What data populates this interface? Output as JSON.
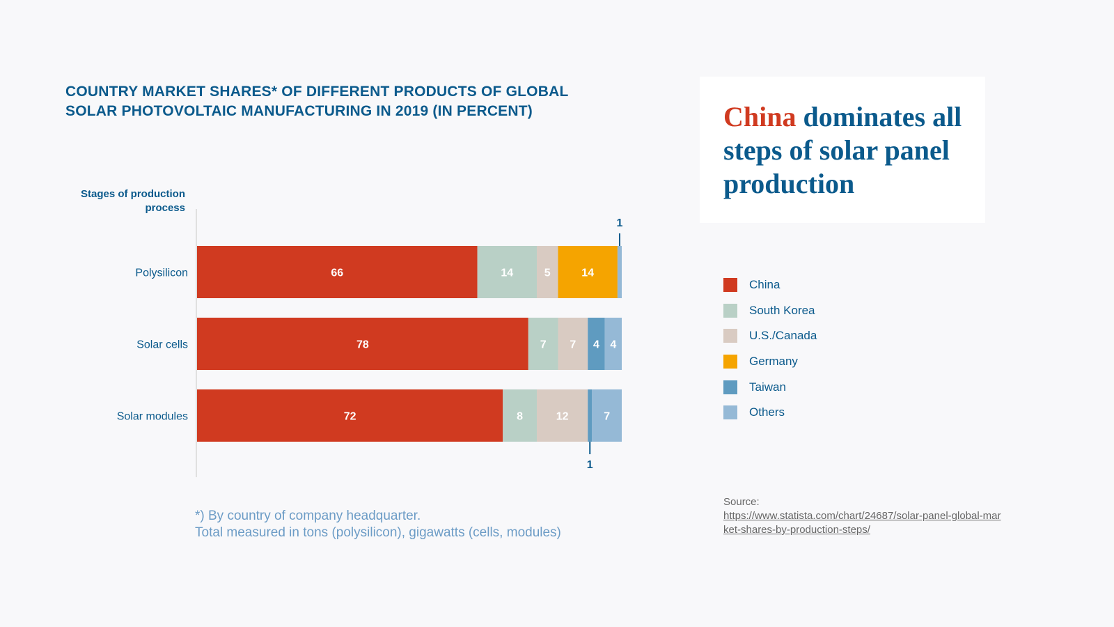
{
  "chart_data": {
    "type": "bar",
    "orientation": "horizontal",
    "stacked": true,
    "title": "COUNTRY MARKET SHARES* OF DIFFERENT PRODUCTS OF GLOBAL SOLAR PHOTOVOLTAIC MANUFACTURING IN 2019 (IN PERCENT)",
    "ylabel": "Stages of production process",
    "xlabel": "",
    "xlim": [
      0,
      100
    ],
    "grid": false,
    "legend_position": "right",
    "categories": [
      "Polysilicon",
      "Solar cells",
      "Solar modules"
    ],
    "series": [
      {
        "name": "China",
        "color": "#d03a20",
        "values": [
          66,
          78,
          72
        ]
      },
      {
        "name": "South Korea",
        "color": "#b9d0c6",
        "values": [
          14,
          7,
          8
        ]
      },
      {
        "name": "U.S./Canada",
        "color": "#d9cbc2",
        "values": [
          5,
          7,
          12
        ]
      },
      {
        "name": "Germany",
        "color": "#f5a400",
        "values": [
          14,
          0,
          0
        ]
      },
      {
        "name": "Taiwan",
        "color": "#5f9bc0",
        "values": [
          0,
          4,
          1
        ]
      },
      {
        "name": "Others",
        "color": "#95b9d6",
        "values": [
          1,
          4,
          7
        ]
      }
    ],
    "annotations": [
      {
        "category": "Polysilicon",
        "series": "Others",
        "text": "1",
        "position": "above"
      },
      {
        "category": "Solar modules",
        "series": "Taiwan",
        "text": "1",
        "position": "below"
      }
    ]
  },
  "headline": {
    "accent": "China",
    "rest": " dominates all steps of solar panel production"
  },
  "footnote": {
    "line1": "*) By country of company headquarter.",
    "line2": "Total measured in tons (polysilicon), gigawatts (cells, modules)"
  },
  "source": {
    "label": "Source:",
    "url": "https://www.statista.com/chart/24687/solar-panel-global-market-shares-by-production-steps/"
  },
  "colors": {
    "brand_blue": "#0b5a8c",
    "china_red": "#d03a20",
    "background": "#f8f8fa"
  }
}
